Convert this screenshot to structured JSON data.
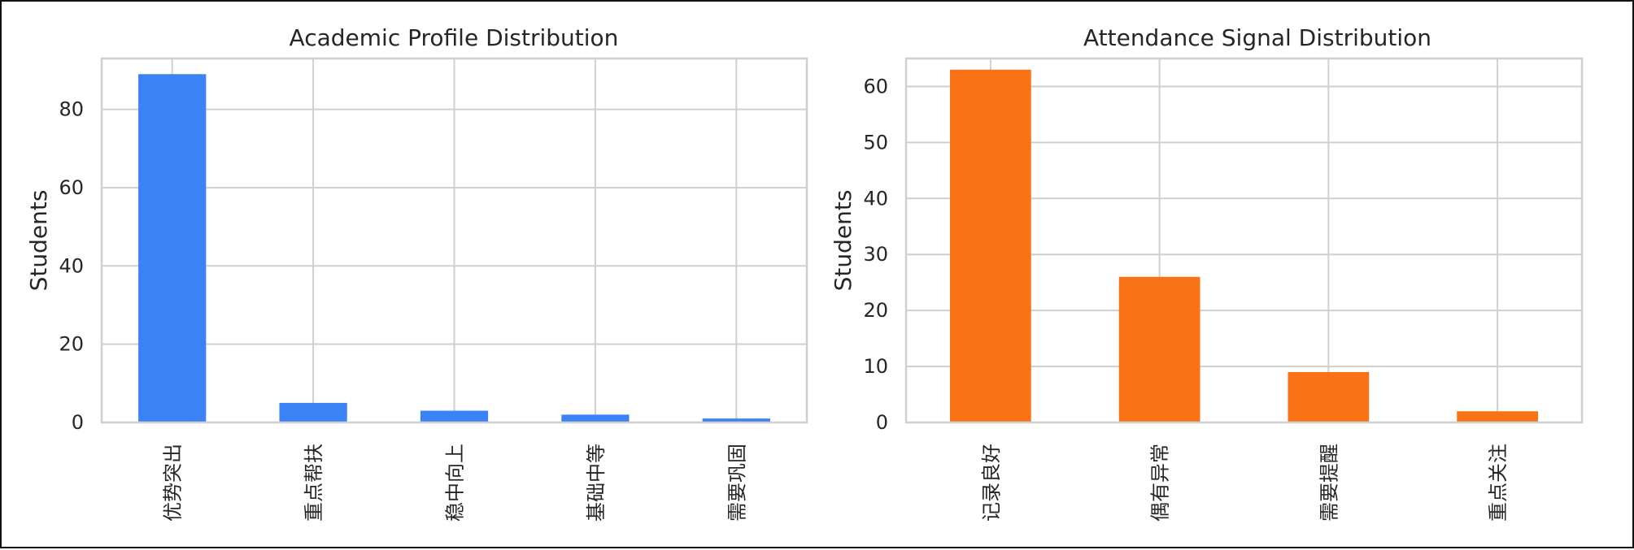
{
  "chart_data": [
    {
      "type": "bar",
      "title": "Academic Profile Distribution",
      "xlabel": "",
      "ylabel": "Students",
      "categories": [
        "优势突出",
        "重点帮扶",
        "稳中向上",
        "基础中等",
        "需要巩固"
      ],
      "values": [
        89,
        5,
        3,
        2,
        1
      ],
      "ylim": [
        0,
        93
      ],
      "yticks": [
        0,
        20,
        40,
        60,
        80
      ],
      "grid": true,
      "color": "#3b82f6"
    },
    {
      "type": "bar",
      "title": "Attendance Signal Distribution",
      "xlabel": "",
      "ylabel": "Students",
      "categories": [
        "记录良好",
        "偶有异常",
        "需要提醒",
        "重点关注"
      ],
      "values": [
        63,
        26,
        9,
        2
      ],
      "ylim": [
        0,
        65
      ],
      "yticks": [
        0,
        10,
        20,
        30,
        40,
        50,
        60
      ],
      "grid": true,
      "color": "#f97316"
    }
  ]
}
